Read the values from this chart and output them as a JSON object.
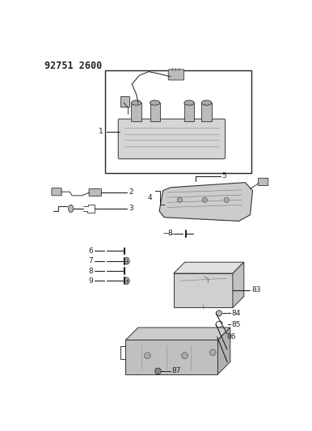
{
  "background_color": "#ffffff",
  "line_color": "#000000",
  "fig_width": 3.86,
  "fig_height": 5.33,
  "dpi": 100,
  "title": "92751 2600",
  "title_fontsize": 8.5,
  "label_fontsize": 6.5,
  "part_color": "#cccccc",
  "draw_color": "#222222"
}
